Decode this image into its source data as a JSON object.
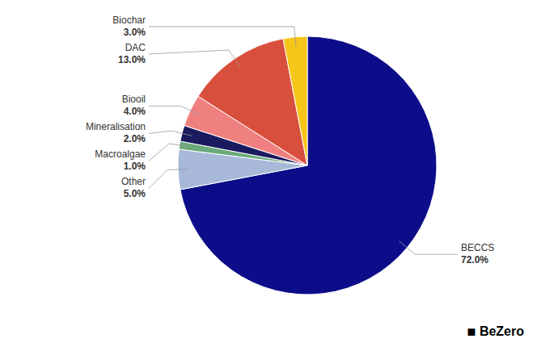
{
  "chart_data": {
    "type": "pie",
    "categories": [
      "BECCS",
      "Other",
      "Macroalgae",
      "Mineralisation",
      "Biooil",
      "DAC",
      "Biochar"
    ],
    "values": [
      72.0,
      5.0,
      1.0,
      2.0,
      4.0,
      13.0,
      3.0
    ],
    "value_labels": [
      "72.0%",
      "5.0%",
      "1.0%",
      "2.0%",
      "4.0%",
      "13.0%",
      "3.0%"
    ],
    "colors": [
      "#0d0d8a",
      "#a8b8d8",
      "#6aaa7a",
      "#1a1a5e",
      "#f08080",
      "#d94f3d",
      "#f5c518"
    ],
    "data_labels": true,
    "annotations": [
      "◾",
      "BeZero"
    ]
  }
}
